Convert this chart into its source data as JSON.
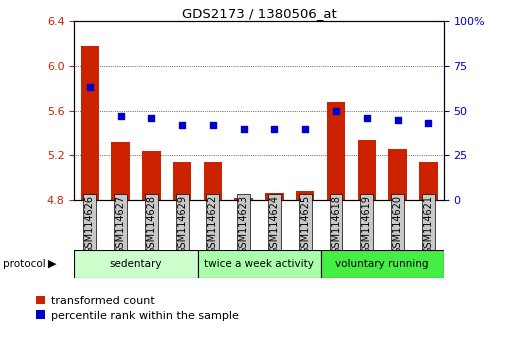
{
  "title": "GDS2173 / 1380506_at",
  "samples": [
    "GSM114626",
    "GSM114627",
    "GSM114628",
    "GSM114629",
    "GSM114622",
    "GSM114623",
    "GSM114624",
    "GSM114625",
    "GSM114618",
    "GSM114619",
    "GSM114620",
    "GSM114621"
  ],
  "red_values": [
    6.18,
    5.32,
    5.24,
    5.14,
    5.14,
    4.82,
    4.86,
    4.88,
    5.68,
    5.34,
    5.26,
    5.14
  ],
  "blue_values": [
    63,
    47,
    46,
    42,
    42,
    40,
    40,
    40,
    50,
    46,
    45,
    43
  ],
  "ylim_left": [
    4.8,
    6.4
  ],
  "ylim_right": [
    0,
    100
  ],
  "yticks_left": [
    4.8,
    5.2,
    5.6,
    6.0,
    6.4
  ],
  "yticks_right": [
    0,
    25,
    50,
    75,
    100
  ],
  "groups": [
    {
      "label": "sedentary",
      "start": 0,
      "end": 4,
      "color": "#ccffcc"
    },
    {
      "label": "twice a week activity",
      "start": 4,
      "end": 8,
      "color": "#aaffaa"
    },
    {
      "label": "voluntary running",
      "start": 8,
      "end": 12,
      "color": "#44ee44"
    }
  ],
  "bar_color": "#cc2200",
  "dot_color": "#0000cc",
  "grid_color": "#000000",
  "bar_bottom": 4.8,
  "bar_width": 0.6,
  "dot_size": 22,
  "legend_red_label": "transformed count",
  "legend_blue_label": "percentile rank within the sample",
  "protocol_label": "protocol",
  "tick_color_left": "#cc2200",
  "tick_color_right": "#0000cc",
  "grid_yticks": [
    5.2,
    5.6,
    6.0
  ],
  "label_fontsize": 7,
  "tick_fontsize": 8
}
